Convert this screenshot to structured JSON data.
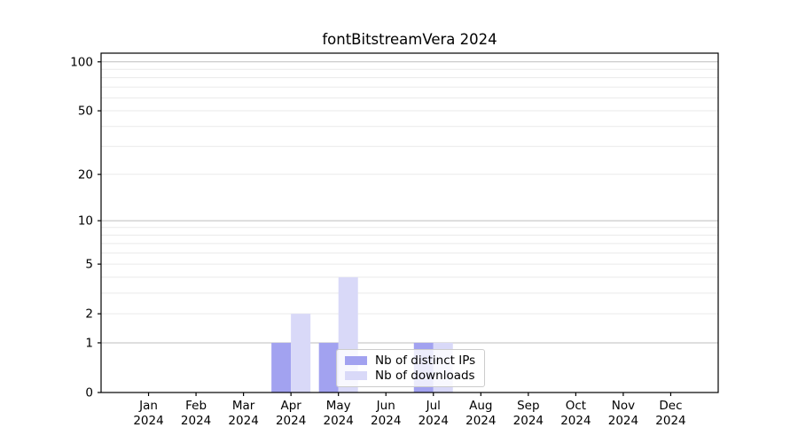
{
  "chart_data": {
    "type": "bar",
    "title": "fontBitstreamVera 2024",
    "categories": [
      "Jan",
      "Feb",
      "Mar",
      "Apr",
      "May",
      "Jun",
      "Jul",
      "Aug",
      "Sep",
      "Oct",
      "Nov",
      "Dec"
    ],
    "category_year": "2024",
    "series": [
      {
        "name": "Nb of distinct IPs",
        "color": "#a2a2f0",
        "values": [
          0,
          0,
          0,
          1,
          1,
          0,
          1,
          0,
          0,
          0,
          0,
          0
        ]
      },
      {
        "name": "Nb of downloads",
        "color": "#d9d9f8",
        "values": [
          0,
          0,
          0,
          2,
          4,
          0,
          1,
          0,
          0,
          0,
          0,
          0
        ]
      }
    ],
    "y_axis": {
      "scale": "log1p",
      "ylim": [
        0,
        113
      ],
      "ticks": [
        0,
        1,
        2,
        5,
        10,
        20,
        50,
        100
      ],
      "major_grid": [
        1,
        10,
        100
      ],
      "minor_grid": [
        2,
        3,
        4,
        5,
        6,
        7,
        8,
        9,
        20,
        30,
        40,
        50,
        60,
        70,
        80,
        90
      ]
    },
    "x_axis": {
      "label_format": "month-over-year"
    },
    "legend": {
      "position": "lower center-right"
    },
    "grid": true,
    "colors": {
      "major_grid": "#bdbdbd",
      "minor_grid": "#eaeaea",
      "spine": "#000000",
      "text": "#000000"
    }
  }
}
